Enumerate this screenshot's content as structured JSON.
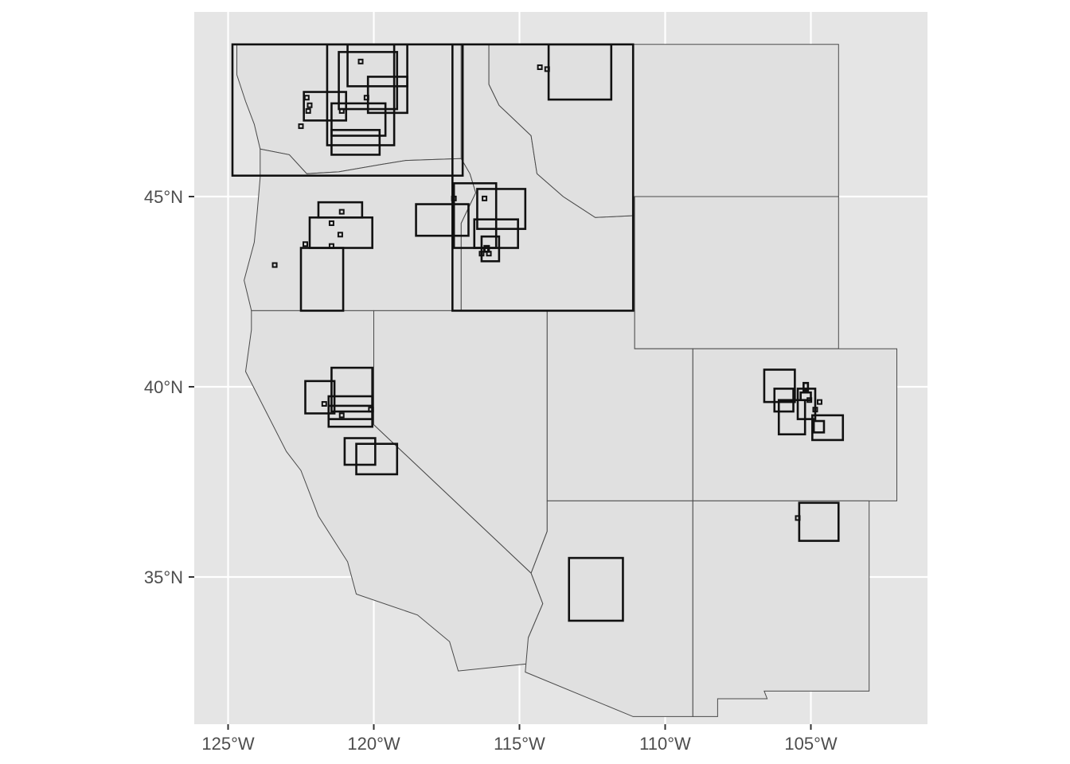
{
  "chart_data": {
    "type": "map",
    "title": "",
    "xlabel": "",
    "ylabel": "",
    "x_ticks": [
      {
        "value": -125,
        "label": "125°W"
      },
      {
        "value": -120,
        "label": "120°W"
      },
      {
        "value": -115,
        "label": "115°W"
      },
      {
        "value": -110,
        "label": "110°W"
      },
      {
        "value": -105,
        "label": "105°W"
      }
    ],
    "y_ticks": [
      {
        "value": 45,
        "label": "45°N"
      },
      {
        "value": 40,
        "label": "40°N"
      },
      {
        "value": 35,
        "label": "35°N"
      }
    ],
    "xlim": [
      -126.1,
      -101.1
    ],
    "ylim": [
      31.2,
      49.6
    ],
    "panel_background": "#e5e5e5",
    "grid": true,
    "base_layer": {
      "name": "western-states",
      "fill": "#e0e0e0",
      "border": "#4a4a4a",
      "states": [
        {
          "name": "Washington",
          "coords": [
            [
              -124.7,
              49.0
            ],
            [
              -117.0,
              49.0
            ],
            [
              -117.0,
              46.0
            ],
            [
              -118.9,
              45.95
            ],
            [
              -119.7,
              45.85
            ],
            [
              -121.2,
              45.65
            ],
            [
              -122.3,
              45.6
            ],
            [
              -122.9,
              46.1
            ],
            [
              -123.9,
              46.25
            ],
            [
              -124.1,
              46.9
            ],
            [
              -124.4,
              47.5
            ],
            [
              -124.7,
              48.2
            ],
            [
              -124.7,
              49.0
            ]
          ]
        },
        {
          "name": "Oregon",
          "coords": [
            [
              -123.9,
              46.25
            ],
            [
              -122.9,
              46.1
            ],
            [
              -122.3,
              45.6
            ],
            [
              -121.2,
              45.65
            ],
            [
              -119.7,
              45.85
            ],
            [
              -118.9,
              45.95
            ],
            [
              -117.0,
              46.0
            ],
            [
              -116.7,
              45.6
            ],
            [
              -116.5,
              45.1
            ],
            [
              -117.0,
              44.3
            ],
            [
              -117.0,
              42.0
            ],
            [
              -124.2,
              42.0
            ],
            [
              -124.45,
              42.8
            ],
            [
              -124.1,
              43.8
            ],
            [
              -124.0,
              44.6
            ],
            [
              -123.9,
              45.5
            ],
            [
              -123.9,
              46.25
            ]
          ]
        },
        {
          "name": "Idaho",
          "coords": [
            [
              -117.0,
              49.0
            ],
            [
              -116.05,
              49.0
            ],
            [
              -116.05,
              47.95
            ],
            [
              -115.7,
              47.4
            ],
            [
              -114.6,
              46.6
            ],
            [
              -114.4,
              45.6
            ],
            [
              -113.5,
              45.0
            ],
            [
              -112.4,
              44.45
            ],
            [
              -111.05,
              44.5
            ],
            [
              -111.05,
              42.0
            ],
            [
              -117.0,
              42.0
            ],
            [
              -117.0,
              44.3
            ],
            [
              -116.5,
              45.1
            ],
            [
              -116.7,
              45.6
            ],
            [
              -117.0,
              46.0
            ],
            [
              -117.0,
              49.0
            ]
          ]
        },
        {
          "name": "Montana",
          "coords": [
            [
              -116.05,
              49.0
            ],
            [
              -104.05,
              49.0
            ],
            [
              -104.05,
              45.0
            ],
            [
              -111.05,
              45.0
            ],
            [
              -111.05,
              44.5
            ],
            [
              -112.4,
              44.45
            ],
            [
              -113.5,
              45.0
            ],
            [
              -114.4,
              45.6
            ],
            [
              -114.6,
              46.6
            ],
            [
              -115.7,
              47.4
            ],
            [
              -116.05,
              47.95
            ],
            [
              -116.05,
              49.0
            ]
          ]
        },
        {
          "name": "Wyoming",
          "coords": [
            [
              -111.05,
              45.0
            ],
            [
              -104.05,
              45.0
            ],
            [
              -104.05,
              41.0
            ],
            [
              -111.05,
              41.0
            ],
            [
              -111.05,
              45.0
            ]
          ]
        },
        {
          "name": "Nevada",
          "coords": [
            [
              -120.0,
              42.0
            ],
            [
              -114.05,
              42.0
            ],
            [
              -114.05,
              36.2
            ],
            [
              -114.6,
              35.1
            ],
            [
              -120.0,
              39.0
            ],
            [
              -120.0,
              42.0
            ]
          ]
        },
        {
          "name": "California",
          "coords": [
            [
              -124.2,
              42.0
            ],
            [
              -120.0,
              42.0
            ],
            [
              -120.0,
              39.0
            ],
            [
              -114.6,
              35.1
            ],
            [
              -114.2,
              34.3
            ],
            [
              -114.7,
              33.4
            ],
            [
              -114.7,
              32.72
            ],
            [
              -117.1,
              32.53
            ],
            [
              -117.4,
              33.3
            ],
            [
              -118.5,
              34.0
            ],
            [
              -120.6,
              34.55
            ],
            [
              -120.9,
              35.4
            ],
            [
              -121.9,
              36.6
            ],
            [
              -122.5,
              37.8
            ],
            [
              -123.0,
              38.3
            ],
            [
              -123.8,
              39.5
            ],
            [
              -124.4,
              40.4
            ],
            [
              -124.2,
              41.5
            ],
            [
              -124.2,
              42.0
            ]
          ]
        },
        {
          "name": "Utah",
          "coords": [
            [
              -114.05,
              42.0
            ],
            [
              -111.05,
              42.0
            ],
            [
              -111.05,
              41.0
            ],
            [
              -109.05,
              41.0
            ],
            [
              -109.05,
              37.0
            ],
            [
              -114.05,
              37.0
            ],
            [
              -114.05,
              42.0
            ]
          ]
        },
        {
          "name": "Colorado",
          "coords": [
            [
              -109.05,
              41.0
            ],
            [
              -102.05,
              41.0
            ],
            [
              -102.05,
              37.0
            ],
            [
              -109.05,
              37.0
            ],
            [
              -109.05,
              41.0
            ]
          ]
        },
        {
          "name": "Arizona",
          "coords": [
            [
              -114.05,
              37.0
            ],
            [
              -109.05,
              37.0
            ],
            [
              -109.05,
              31.33
            ],
            [
              -111.1,
              31.33
            ],
            [
              -114.8,
              32.5
            ],
            [
              -114.7,
              33.4
            ],
            [
              -114.2,
              34.3
            ],
            [
              -114.6,
              35.1
            ],
            [
              -114.05,
              36.2
            ],
            [
              -114.05,
              37.0
            ]
          ]
        },
        {
          "name": "New Mexico",
          "coords": [
            [
              -109.05,
              37.0
            ],
            [
              -103.0,
              37.0
            ],
            [
              -103.0,
              32.0
            ],
            [
              -106.6,
              32.0
            ],
            [
              -106.5,
              31.8
            ],
            [
              -108.2,
              31.8
            ],
            [
              -108.2,
              31.33
            ],
            [
              -109.05,
              31.33
            ],
            [
              -109.05,
              37.0
            ]
          ]
        }
      ]
    },
    "series": [
      {
        "type": "bounding-boxes",
        "coords_order": [
          "lon_min",
          "lat_min",
          "lon_max",
          "lat_max"
        ],
        "boxes": [
          [
            -124.85,
            45.55,
            -116.95,
            49.0
          ],
          [
            -117.3,
            42.0,
            -111.1,
            49.0
          ],
          [
            -114.0,
            47.55,
            -111.85,
            49.0
          ],
          [
            -121.6,
            46.35,
            -119.3,
            49.0
          ],
          [
            -120.9,
            47.9,
            -118.85,
            49.0
          ],
          [
            -121.2,
            47.3,
            -119.2,
            48.8
          ],
          [
            -120.2,
            47.2,
            -118.85,
            48.15
          ],
          [
            -122.4,
            47.0,
            -120.95,
            47.75
          ],
          [
            -121.45,
            46.6,
            -119.6,
            47.45
          ],
          [
            -121.45,
            46.1,
            -119.8,
            46.75
          ],
          [
            -121.9,
            44.45,
            -120.4,
            44.85
          ],
          [
            -122.2,
            43.65,
            -120.05,
            44.45
          ],
          [
            -122.5,
            42.0,
            -121.05,
            43.65
          ],
          [
            -118.55,
            43.97,
            -116.75,
            44.8
          ],
          [
            -117.25,
            43.65,
            -115.8,
            45.35
          ],
          [
            -116.45,
            44.15,
            -114.8,
            45.2
          ],
          [
            -116.55,
            43.65,
            -115.05,
            44.4
          ],
          [
            -116.3,
            43.3,
            -115.7,
            43.95
          ],
          [
            -116.2,
            43.55,
            -116.05,
            43.7
          ],
          [
            -121.45,
            39.35,
            -120.05,
            40.5
          ],
          [
            -122.35,
            39.3,
            -121.35,
            40.15
          ],
          [
            -121.55,
            39.15,
            -120.05,
            39.75
          ],
          [
            -121.55,
            38.95,
            -120.05,
            39.5
          ],
          [
            -121.0,
            37.95,
            -119.95,
            38.65
          ],
          [
            -120.6,
            37.7,
            -119.2,
            38.5
          ],
          [
            -113.3,
            33.85,
            -111.45,
            35.5
          ],
          [
            -106.6,
            39.6,
            -105.55,
            40.45
          ],
          [
            -106.25,
            39.35,
            -105.6,
            39.95
          ],
          [
            -106.1,
            38.75,
            -105.2,
            39.65
          ],
          [
            -105.45,
            39.15,
            -104.85,
            39.95
          ],
          [
            -104.95,
            38.6,
            -103.9,
            39.25
          ],
          [
            -104.9,
            38.8,
            -104.55,
            39.1
          ],
          [
            -105.4,
            35.95,
            -104.05,
            36.95
          ],
          [
            -105.35,
            39.65,
            -105.0,
            39.85
          ],
          [
            -105.25,
            39.9,
            -105.1,
            40.1
          ]
        ],
        "points": [
          [
            -123.4,
            43.2
          ],
          [
            -122.35,
            43.75
          ],
          [
            -121.45,
            44.3
          ],
          [
            -121.45,
            43.7
          ],
          [
            -121.15,
            44.0
          ],
          [
            -121.1,
            44.6
          ],
          [
            -116.2,
            44.95
          ],
          [
            -117.25,
            44.95
          ],
          [
            -116.15,
            43.6
          ],
          [
            -116.3,
            43.5
          ],
          [
            -116.05,
            43.5
          ],
          [
            -122.3,
            47.6
          ],
          [
            -122.2,
            47.4
          ],
          [
            -122.5,
            46.85
          ],
          [
            -122.25,
            47.25
          ],
          [
            -120.45,
            48.55
          ],
          [
            -114.3,
            48.4
          ],
          [
            -114.05,
            48.35
          ],
          [
            -120.25,
            47.6
          ],
          [
            -121.1,
            47.25
          ],
          [
            -121.7,
            39.55
          ],
          [
            -121.1,
            39.25
          ],
          [
            -120.1,
            39.4
          ],
          [
            -105.45,
            36.55
          ],
          [
            -104.7,
            39.6
          ],
          [
            -104.85,
            39.4
          ],
          [
            -105.05,
            39.65
          ]
        ]
      }
    ]
  }
}
